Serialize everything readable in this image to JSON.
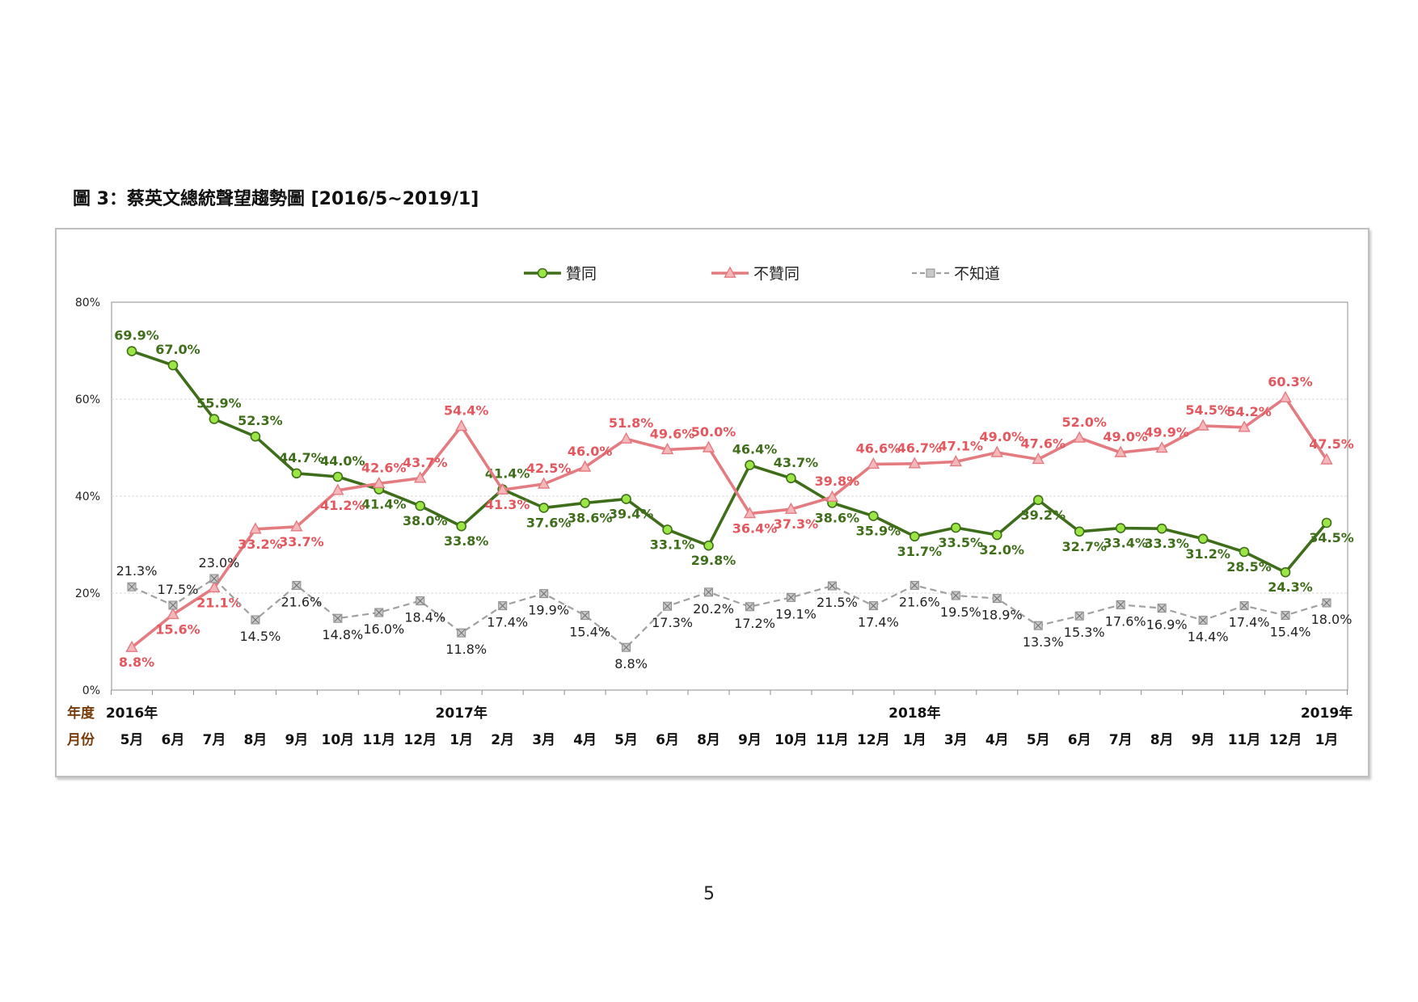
{
  "page": {
    "title": "圖 3：蔡英文總統聲望趨勢圖  [2016/5~2019/1]",
    "page_number": "5"
  },
  "chart_data": {
    "type": "line",
    "ylim": [
      0,
      80
    ],
    "y_ticks": [
      "0%",
      "20%",
      "40%",
      "60%",
      "80%"
    ],
    "grid": true,
    "legend_position": "top",
    "row_labels": {
      "year": "年度",
      "month": "月份"
    },
    "year_labels": [
      {
        "index": 0,
        "label": "2016年"
      },
      {
        "index": 8,
        "label": "2017年"
      },
      {
        "index": 19,
        "label": "2018年"
      },
      {
        "index": 29,
        "label": "2019年"
      }
    ],
    "categories": [
      "5月",
      "6月",
      "7月",
      "8月",
      "9月",
      "10月",
      "11月",
      "12月",
      "1月",
      "2月",
      "3月",
      "4月",
      "5月",
      "6月",
      "8月",
      "9月",
      "10月",
      "11月",
      "12月",
      "1月",
      "3月",
      "4月",
      "5月",
      "6月",
      "7月",
      "8月",
      "9月",
      "11月",
      "12月",
      "1月"
    ],
    "series": [
      {
        "name": "贊同",
        "color": "#3f6e1b",
        "marker": "circle",
        "marker_fill": "#9be645",
        "dashed": false,
        "values": [
          69.9,
          67.0,
          55.9,
          52.3,
          44.7,
          44.0,
          41.4,
          38.0,
          33.8,
          41.4,
          37.6,
          38.6,
          39.4,
          33.1,
          29.8,
          46.4,
          43.7,
          38.6,
          35.9,
          31.7,
          33.5,
          32.0,
          39.2,
          32.7,
          33.4,
          33.3,
          31.2,
          28.5,
          24.3,
          34.5
        ],
        "labels": [
          "69.9%",
          "67.0%",
          "55.9%",
          "52.3%",
          "44.7%",
          "44.0%",
          "41.4%",
          "38.0%",
          "33.8%",
          "41.4%",
          "37.6%",
          "38.6%",
          "39.4%",
          "33.1%",
          "29.8%",
          "46.4%",
          "43.7%",
          "38.6%",
          "35.9%",
          "31.7%",
          "33.5%",
          "32.0%",
          "39.2%",
          "32.7%",
          "33.4%",
          "33.3%",
          "31.2%",
          "28.5%",
          "24.3%",
          "34.5%"
        ]
      },
      {
        "name": "不贊同",
        "color": "#e47b80",
        "marker": "triangle",
        "marker_fill": "#f4b7ba",
        "dashed": false,
        "values": [
          8.8,
          15.6,
          21.1,
          33.2,
          33.7,
          41.2,
          42.6,
          43.7,
          54.4,
          41.3,
          42.5,
          46.0,
          51.8,
          49.6,
          50.0,
          36.4,
          37.3,
          39.8,
          46.6,
          46.7,
          47.1,
          49.0,
          47.6,
          52.0,
          49.0,
          49.9,
          54.5,
          54.2,
          60.3,
          47.5
        ],
        "labels": [
          "8.8%",
          "15.6%",
          "21.1%",
          "33.2%",
          "33.7%",
          "41.2%",
          "42.6%",
          "43.7%",
          "54.4%",
          "41.3%",
          "42.5%",
          "46.0%",
          "51.8%",
          "49.6%",
          "50.0%",
          "36.4%",
          "37.3%",
          "39.8%",
          "46.6%",
          "46.7%",
          "47.1%",
          "49.0%",
          "47.6%",
          "52.0%",
          "49.0%",
          "49.9%",
          "54.5%",
          "54.2%",
          "60.3%",
          "47.5%"
        ]
      },
      {
        "name": "不知道",
        "color": "#a0a0a0",
        "marker": "square-x",
        "marker_fill": "#c8c8c8",
        "dashed": true,
        "values": [
          21.3,
          17.5,
          23.0,
          14.5,
          21.6,
          14.8,
          16.0,
          18.4,
          11.8,
          17.4,
          19.9,
          15.4,
          8.8,
          17.3,
          20.2,
          17.2,
          19.1,
          21.5,
          17.4,
          21.6,
          19.5,
          18.9,
          13.3,
          15.3,
          17.6,
          16.9,
          14.4,
          17.4,
          15.4,
          18.0
        ],
        "labels": [
          "21.3%",
          "17.5%",
          "23.0%",
          "14.5%",
          "21.6%",
          "14.8%",
          "16.0%",
          "18.4%",
          "11.8%",
          "17.4%",
          "19.9%",
          "15.4%",
          "8.8%",
          "17.3%",
          "20.2%",
          "17.2%",
          "19.1%",
          "21.5%",
          "17.4%",
          "21.6%",
          "19.5%",
          "18.9%",
          "13.3%",
          "15.3%",
          "17.6%",
          "16.9%",
          "14.4%",
          "17.4%",
          "15.4%",
          "18.0%"
        ]
      }
    ]
  }
}
